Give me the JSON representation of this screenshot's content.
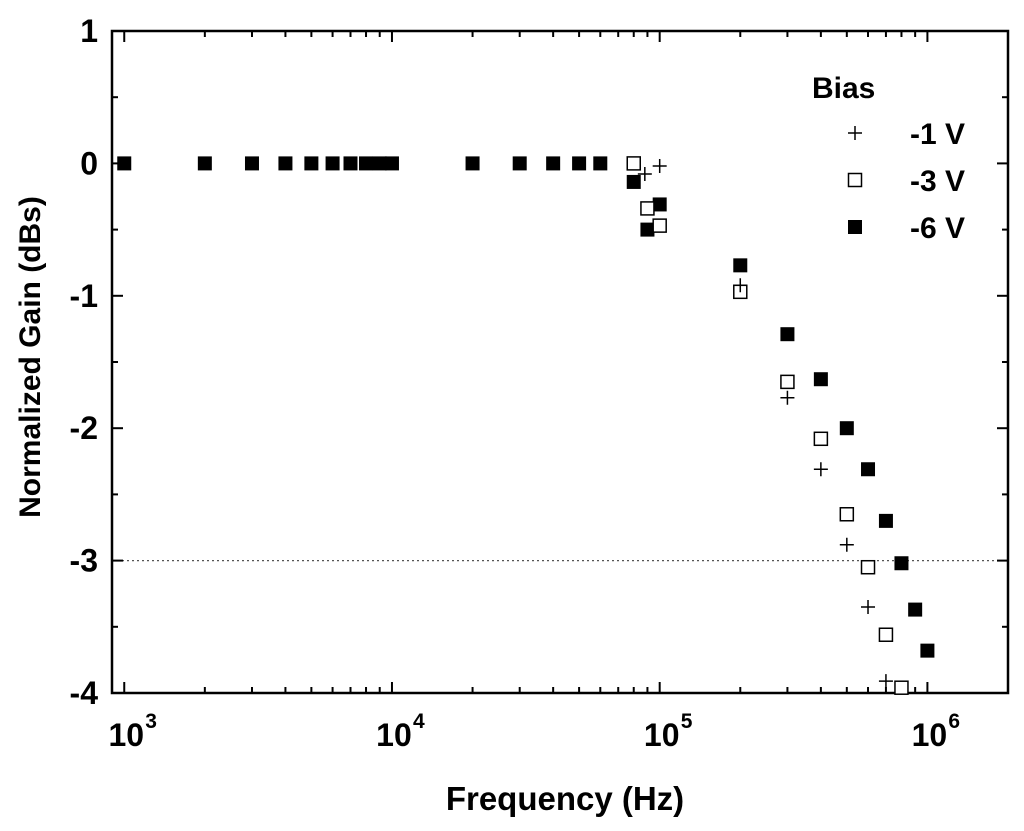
{
  "chart_data": {
    "type": "scatter",
    "title": "",
    "xlabel": "Frequency (Hz)",
    "ylabel": "Normalized Gain (dBs)",
    "xscale": "log",
    "xlim": [
      900,
      2000000
    ],
    "ylim": [
      -4,
      1
    ],
    "x_ticks": [
      {
        "value": 1000,
        "base": "10",
        "exp": "3"
      },
      {
        "value": 10000,
        "base": "10",
        "exp": "4"
      },
      {
        "value": 100000,
        "base": "10",
        "exp": "5"
      },
      {
        "value": 1000000,
        "base": "10",
        "exp": "6"
      }
    ],
    "y_ticks": [
      {
        "value": 1,
        "label": "1"
      },
      {
        "value": 0,
        "label": "0"
      },
      {
        "value": -1,
        "label": "-1"
      },
      {
        "value": -2,
        "label": "-2"
      },
      {
        "value": -3,
        "label": "-3"
      },
      {
        "value": -4,
        "label": "-4"
      }
    ],
    "reference_line": {
      "y": -3,
      "style": "dotted"
    },
    "legend": {
      "title": "Bias",
      "position": "top-right"
    },
    "series": [
      {
        "name": "-1 V",
        "marker": "plus",
        "x": [
          88000,
          100000,
          200000,
          300000,
          400000,
          500000,
          600000,
          700000
        ],
        "y": [
          -0.08,
          -0.02,
          -0.92,
          -1.77,
          -2.31,
          -2.88,
          -3.35,
          -3.91
        ]
      },
      {
        "name": "-3 V",
        "marker": "open-square",
        "x": [
          80000,
          90000,
          100000,
          200000,
          300000,
          400000,
          500000,
          600000,
          700000,
          800000
        ],
        "y": [
          0.0,
          -0.34,
          -0.47,
          -0.97,
          -1.65,
          -2.08,
          -2.65,
          -3.05,
          -3.56,
          -3.96
        ]
      },
      {
        "name": "-6 V",
        "marker": "filled-square",
        "x": [
          1000,
          2000,
          3000,
          4000,
          5000,
          6000,
          7000,
          8000,
          9000,
          10000,
          20000,
          30000,
          40000,
          50000,
          60000,
          80000,
          90000,
          100000,
          200000,
          300000,
          400000,
          500000,
          600000,
          700000,
          800000,
          900000,
          1000000
        ],
        "y": [
          0,
          0,
          0,
          0,
          0,
          0,
          0,
          0,
          0,
          0,
          0,
          0,
          0,
          0,
          0,
          -0.14,
          -0.5,
          -0.31,
          -0.77,
          -1.29,
          -1.63,
          -2.0,
          -2.31,
          -2.7,
          -3.02,
          -3.37,
          -3.68
        ]
      }
    ]
  }
}
